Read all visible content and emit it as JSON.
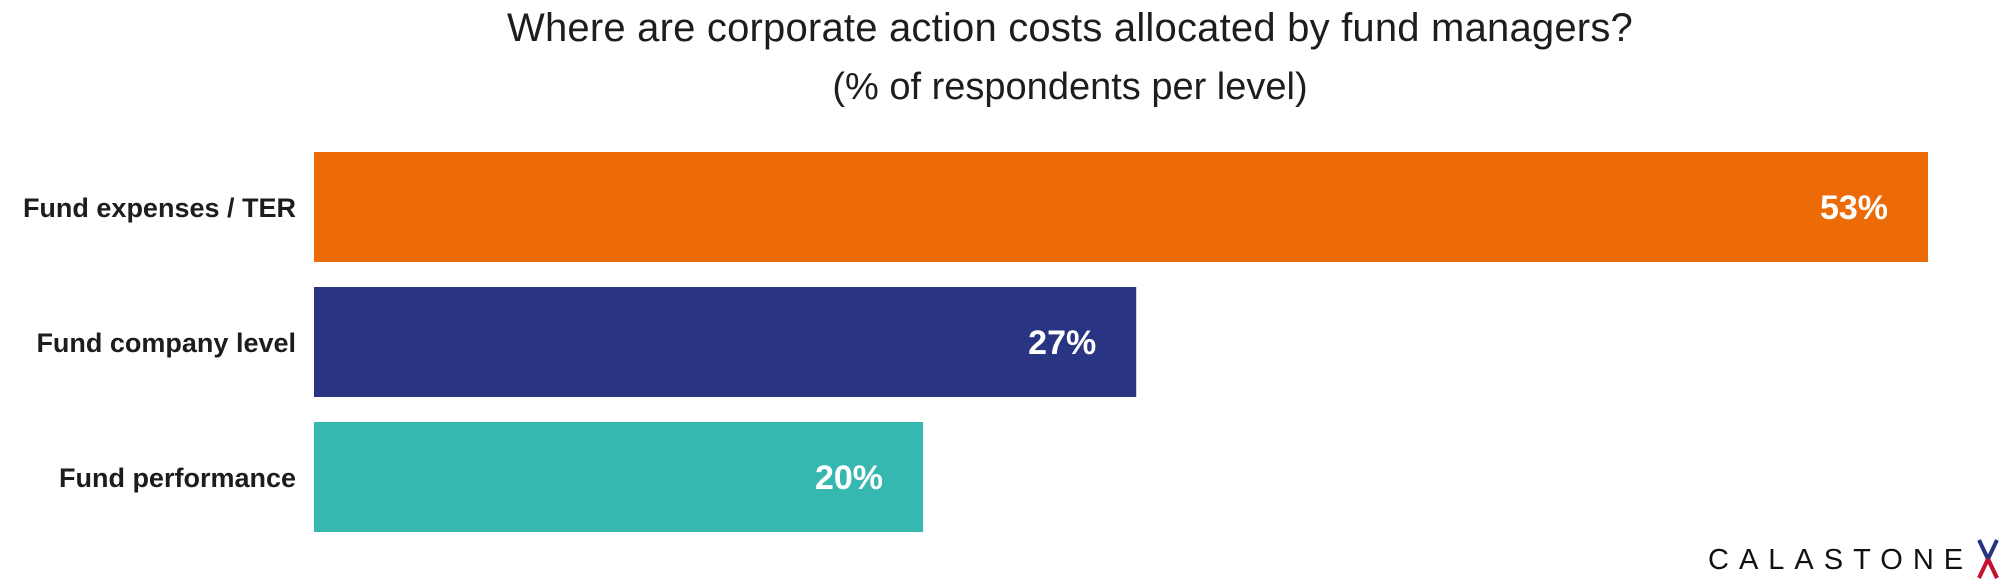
{
  "chart_data": {
    "type": "bar",
    "orientation": "horizontal",
    "title": "Where are corporate action costs allocated by fund managers?",
    "subtitle": "(% of respondents per level)",
    "categories": [
      "Fund expenses / TER",
      "Fund company level",
      "Fund performance"
    ],
    "values": [
      53,
      27,
      20
    ],
    "value_labels": [
      "53%",
      "27%",
      "20%"
    ],
    "colors": [
      "#ed6b06",
      "#293583",
      "#36b8b0"
    ],
    "xlabel": "",
    "ylabel": "",
    "unit": "%",
    "grid": false,
    "legend": "none"
  },
  "branding": {
    "logo_text": "CALASTONE",
    "logo_mark": "X",
    "logo_mark_colors": [
      "#293583",
      "#c8102e"
    ]
  }
}
